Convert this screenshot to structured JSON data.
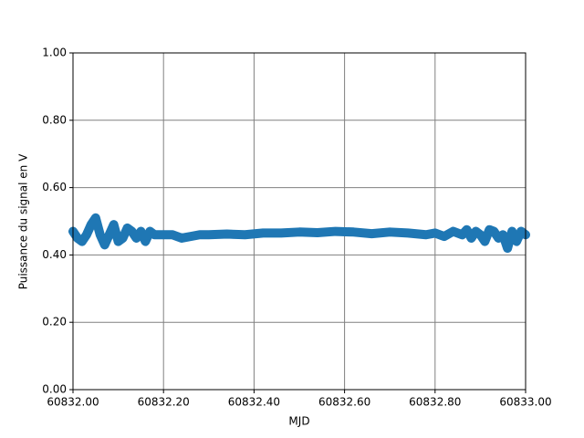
{
  "chart_data": {
    "type": "line",
    "xlabel": "MJD",
    "ylabel": "Puissance du signal en V",
    "xlim": [
      60832.0,
      60833.0
    ],
    "ylim": [
      0,
      1
    ],
    "xticks": [
      {
        "value": 60832.0,
        "label": "60832.00"
      },
      {
        "value": 60832.2,
        "label": "60832.20"
      },
      {
        "value": 60832.4,
        "label": "60832.40"
      },
      {
        "value": 60832.6,
        "label": "60832.60"
      },
      {
        "value": 60832.8,
        "label": "60832.80"
      },
      {
        "value": 60833.0,
        "label": "60833.00"
      }
    ],
    "yticks": [
      {
        "value": 0,
        "label": "0.00"
      },
      {
        "value": 0.2,
        "label": "0.20"
      },
      {
        "value": 0.4,
        "label": "0.40"
      },
      {
        "value": 0.6,
        "label": "0.60"
      },
      {
        "value": 0.8,
        "label": "0.80"
      },
      {
        "value": 1,
        "label": "1.00"
      }
    ],
    "grid": true,
    "series": [
      {
        "color": "#1f77b4",
        "x": [
          60832.0,
          60832.01,
          60832.02,
          60832.03,
          60832.04,
          60832.05,
          60832.06,
          60832.07,
          60832.08,
          60832.09,
          60832.1,
          60832.11,
          60832.12,
          60832.13,
          60832.14,
          60832.15,
          60832.16,
          60832.17,
          60832.18,
          60832.19,
          60832.2,
          60832.22,
          60832.24,
          60832.26,
          60832.28,
          60832.3,
          60832.34,
          60832.38,
          60832.42,
          60832.46,
          60832.5,
          60832.54,
          60832.58,
          60832.62,
          60832.66,
          60832.7,
          60832.74,
          60832.78,
          60832.8,
          60832.82,
          60832.84,
          60832.86,
          60832.87,
          60832.88,
          60832.89,
          60832.9,
          60832.91,
          60832.92,
          60832.93,
          60832.94,
          60832.95,
          60832.96,
          60832.97,
          60832.98,
          60832.99,
          60833.0
        ],
        "values": [
          0.47,
          0.45,
          0.44,
          0.46,
          0.49,
          0.51,
          0.46,
          0.43,
          0.46,
          0.49,
          0.44,
          0.45,
          0.48,
          0.47,
          0.45,
          0.47,
          0.44,
          0.47,
          0.46,
          0.46,
          0.46,
          0.46,
          0.45,
          0.455,
          0.46,
          0.46,
          0.462,
          0.46,
          0.465,
          0.465,
          0.468,
          0.466,
          0.47,
          0.468,
          0.463,
          0.468,
          0.465,
          0.46,
          0.465,
          0.455,
          0.47,
          0.46,
          0.475,
          0.45,
          0.47,
          0.46,
          0.44,
          0.475,
          0.47,
          0.45,
          0.46,
          0.42,
          0.47,
          0.44,
          0.47,
          0.46
        ]
      }
    ]
  }
}
